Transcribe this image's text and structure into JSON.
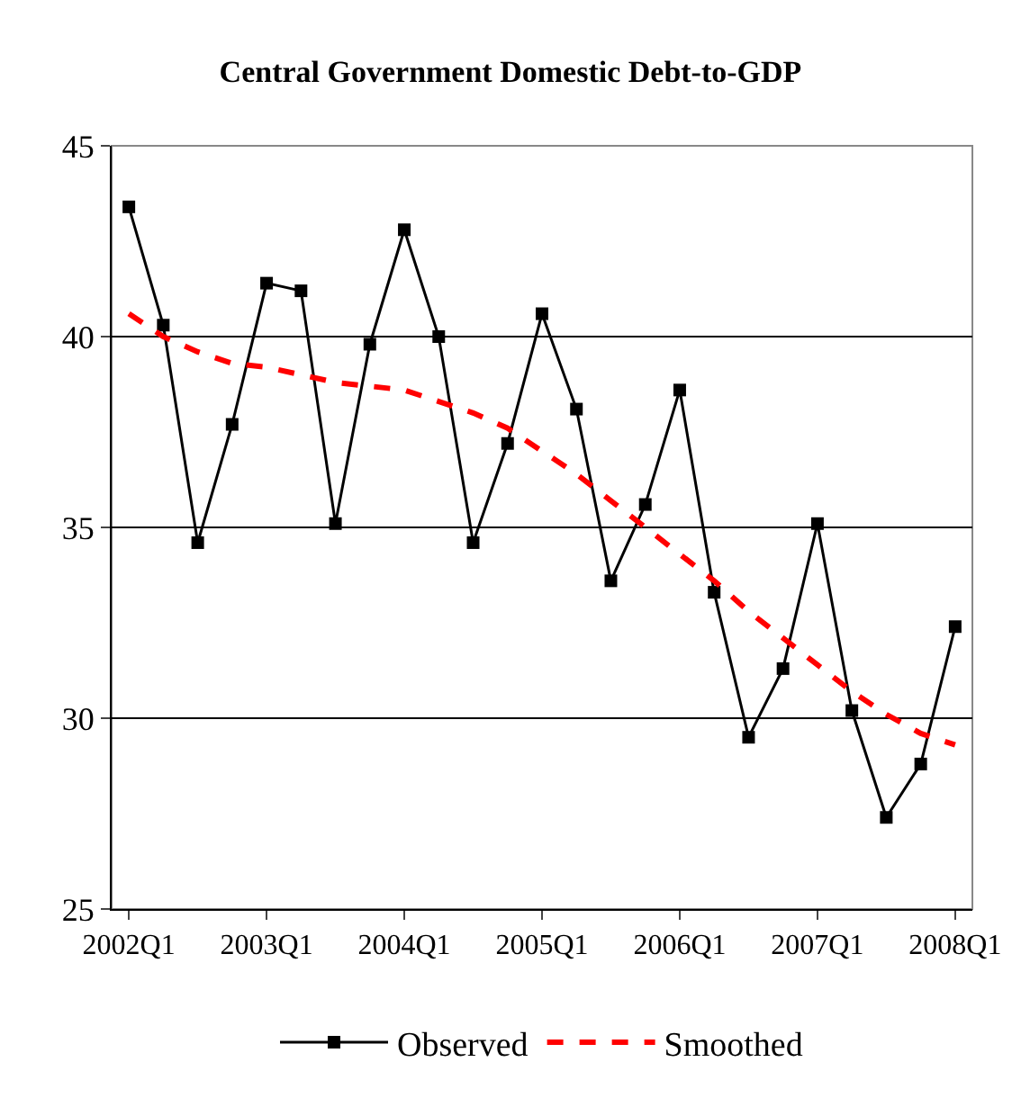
{
  "chart_data": {
    "type": "line",
    "title": "Central Government Domestic Debt-to-GDP",
    "categories": [
      "2002Q1",
      null,
      null,
      null,
      "2003Q1",
      null,
      null,
      null,
      "2004Q1",
      null,
      null,
      null,
      "2005Q1",
      null,
      null,
      null,
      "2006Q1",
      null,
      null,
      null,
      "2007Q1",
      null,
      null,
      null,
      "2008Q1"
    ],
    "series": [
      {
        "name": "Observed",
        "color": "#000000",
        "marker": "square",
        "line_style": "solid",
        "values": [
          43.4,
          40.3,
          34.6,
          37.7,
          41.4,
          41.2,
          35.1,
          39.8,
          42.8,
          40.0,
          34.6,
          37.2,
          40.6,
          38.1,
          33.6,
          35.6,
          38.6,
          33.3,
          29.5,
          31.3,
          35.1,
          30.2,
          27.4,
          28.8,
          32.4
        ]
      },
      {
        "name": "Smoothed",
        "color": "#ff0000",
        "marker": "none",
        "line_style": "dashed",
        "values": [
          40.6,
          40.0,
          39.6,
          39.3,
          39.2,
          39.0,
          38.8,
          38.7,
          38.6,
          38.3,
          38.0,
          37.6,
          37.0,
          36.4,
          35.7,
          35.0,
          34.3,
          33.6,
          32.8,
          32.1,
          31.4,
          30.7,
          30.1,
          29.6,
          29.3
        ]
      }
    ],
    "ylim": [
      25,
      45
    ],
    "yticks": [
      25,
      30,
      35,
      40,
      45
    ],
    "grid": "y",
    "legend": "bottom"
  }
}
